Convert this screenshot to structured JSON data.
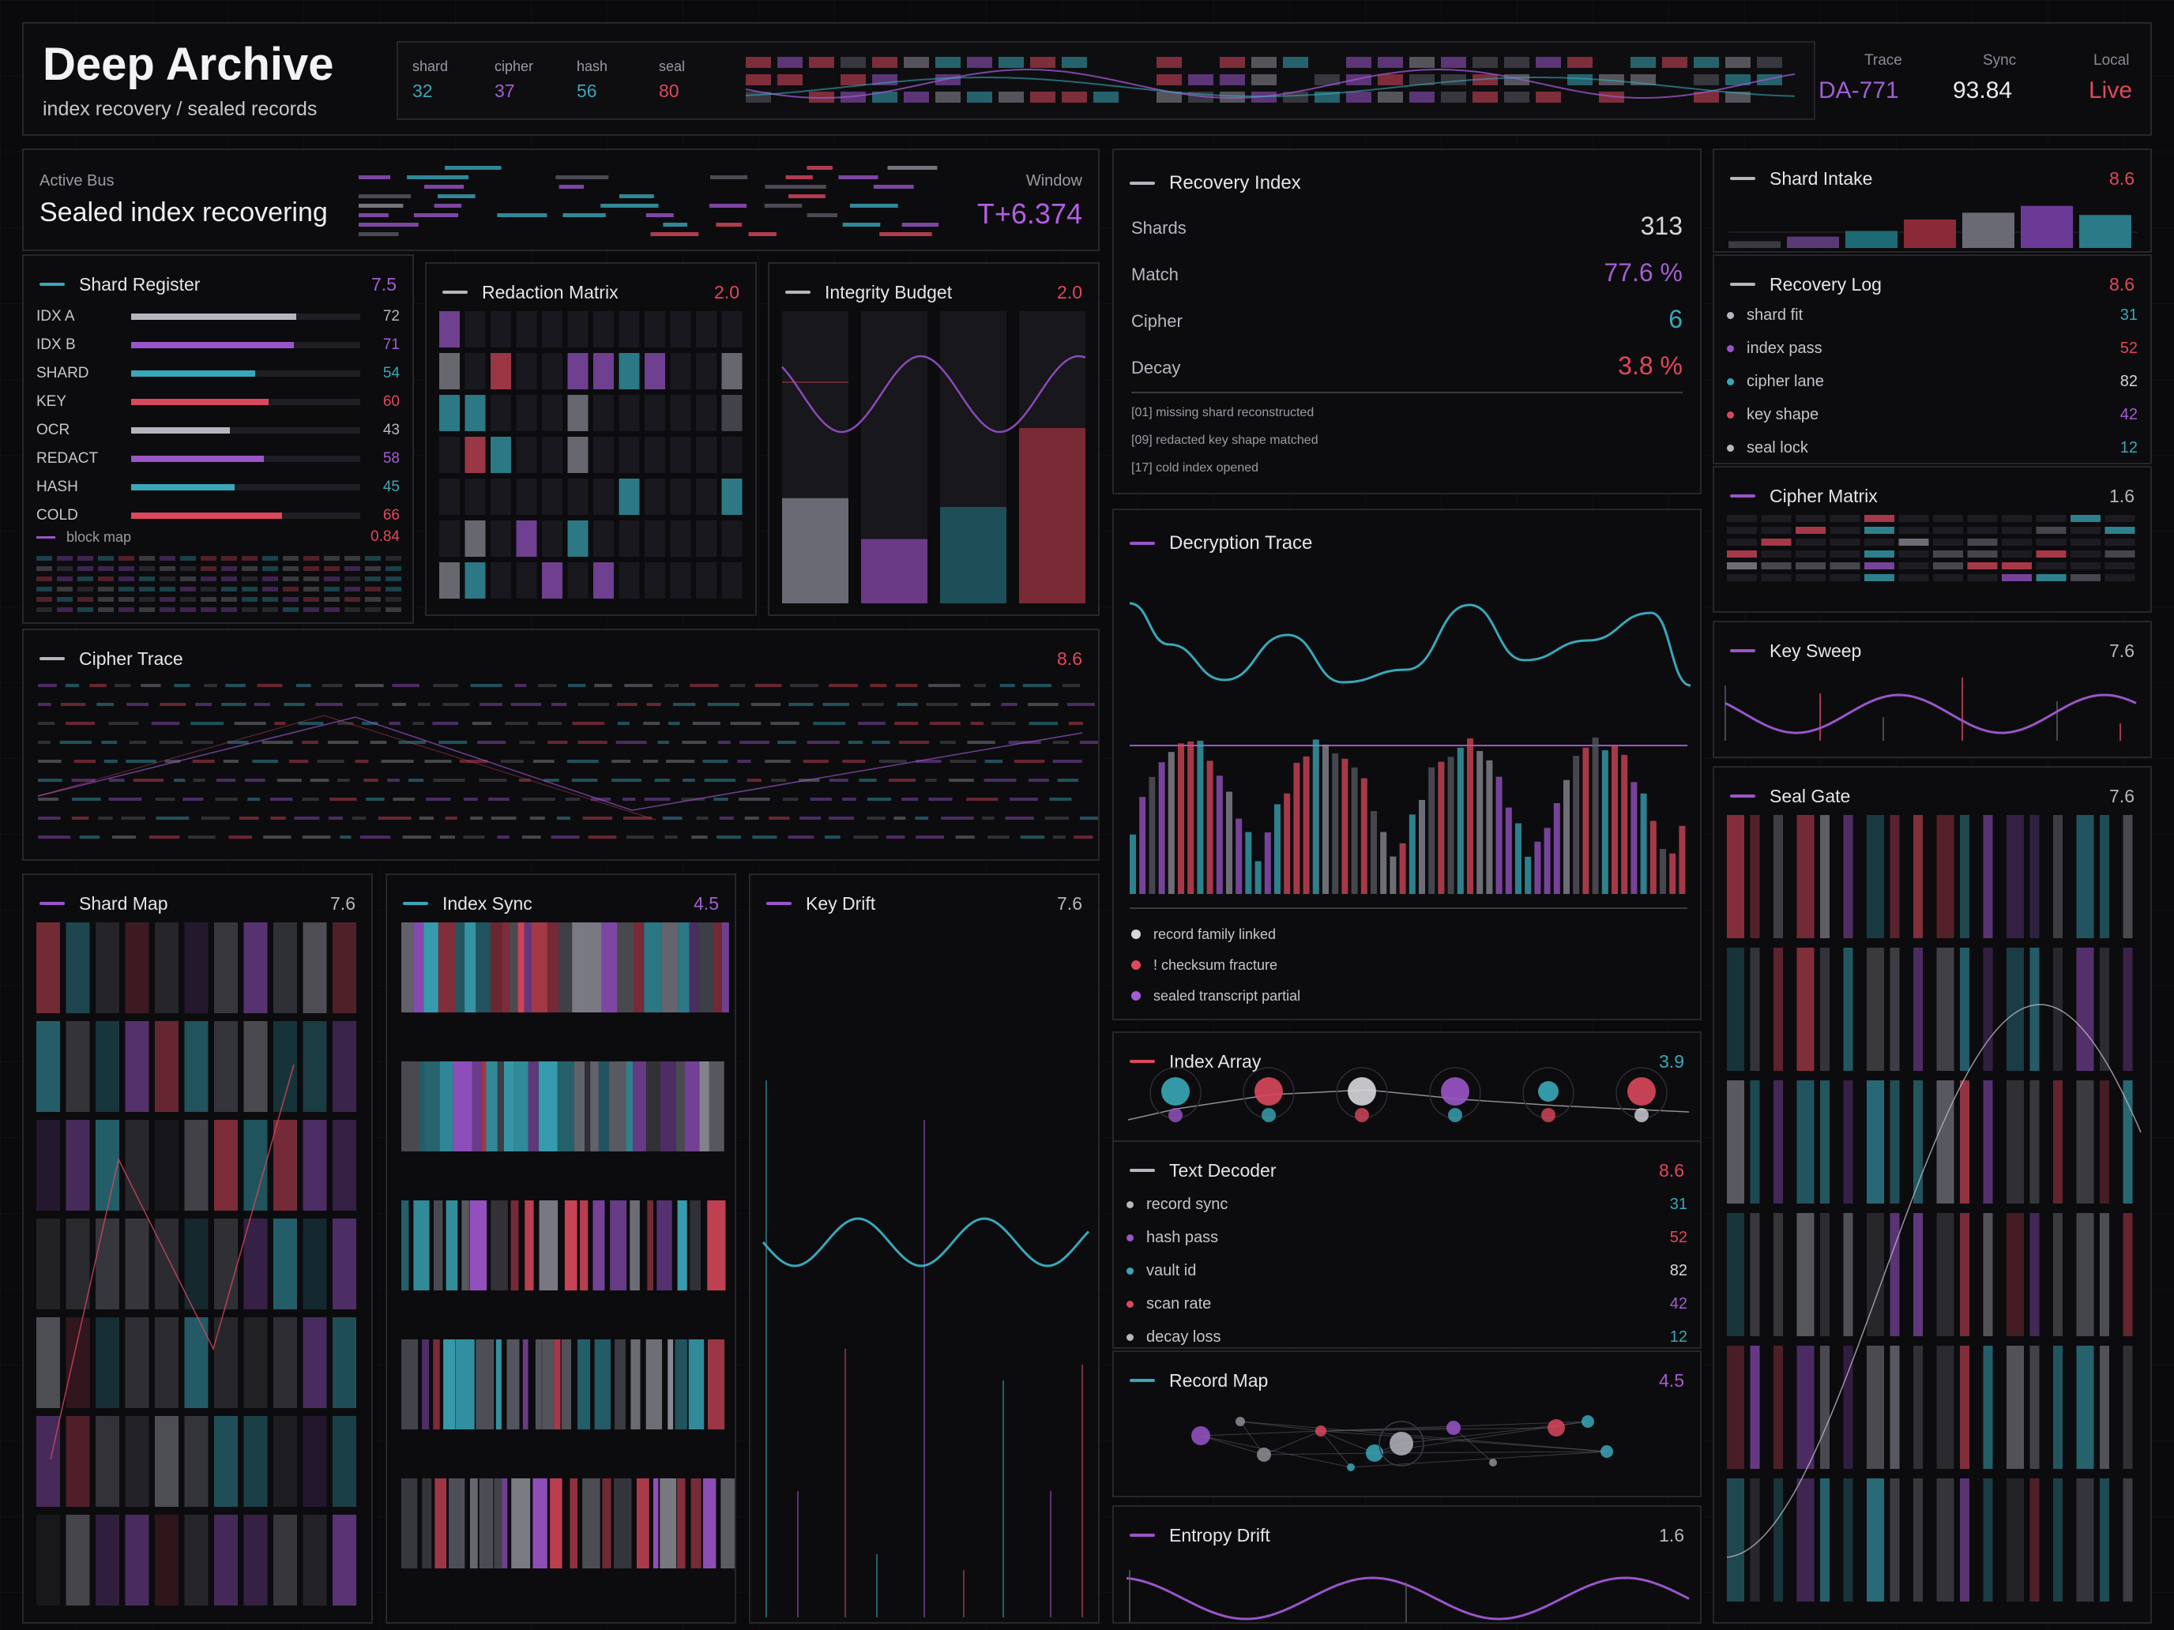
{
  "header": {
    "title": "Deep Archive",
    "subtitle": "index recovery / sealed records",
    "stats": [
      {
        "label": "shard",
        "value": "32",
        "color": "#3aa7b8"
      },
      {
        "label": "cipher",
        "value": "37",
        "color": "#a35ed0"
      },
      {
        "label": "hash",
        "value": "56",
        "color": "#3aa7b8"
      },
      {
        "label": "seal",
        "value": "80",
        "color": "#e0485a"
      }
    ],
    "trace_label": "Trace",
    "trace_value": "DA-771",
    "sync_label": "Sync",
    "sync_value": "93.84",
    "local_label": "Local",
    "local_value": "Live"
  },
  "bus": {
    "label": "Active Bus",
    "title": "Sealed index recovering",
    "window_label": "Window",
    "window_value": "T+6.374"
  },
  "shard_register": {
    "title": "Shard Register",
    "value": "7.5",
    "rows": [
      {
        "name": "IDX A",
        "value": 72,
        "color": "gray"
      },
      {
        "name": "IDX B",
        "value": 71,
        "color": "purp"
      },
      {
        "name": "SHARD",
        "value": 54,
        "color": "teal"
      },
      {
        "name": "KEY",
        "value": 60,
        "color": "red"
      },
      {
        "name": "OCR",
        "value": 43,
        "color": "gray"
      },
      {
        "name": "REDACT",
        "value": 58,
        "color": "purp"
      },
      {
        "name": "HASH",
        "value": 45,
        "color": "teal"
      },
      {
        "name": "COLD",
        "value": 66,
        "color": "red"
      }
    ],
    "legend_label": "block map",
    "legend_value": "0.84"
  },
  "redaction_matrix": {
    "title": "Redaction Matrix",
    "value": "2.0"
  },
  "integrity_budget": {
    "title": "Integrity Budget",
    "value": "2.0"
  },
  "recovery_index": {
    "title": "Recovery Index",
    "metrics": [
      {
        "label": "Shards",
        "value": "313",
        "color": "gray"
      },
      {
        "label": "Match",
        "value": "77.6 %",
        "color": "purp"
      },
      {
        "label": "Cipher",
        "value": "6",
        "color": "teal"
      },
      {
        "label": "Decay",
        "value": "3.8 %",
        "color": "red"
      }
    ],
    "log": [
      "[01] missing shard reconstructed",
      "[09] redacted key shape matched",
      "[17] cold index opened"
    ]
  },
  "shard_intake": {
    "title": "Shard Intake",
    "value": "8.6"
  },
  "recovery_log": {
    "title": "Recovery Log",
    "value": "8.6",
    "rows": [
      {
        "name": "shard fit",
        "value": "31",
        "color": "gray",
        "vcolor": "teal"
      },
      {
        "name": "index pass",
        "value": "52",
        "color": "purp",
        "vcolor": "red"
      },
      {
        "name": "cipher lane",
        "value": "82",
        "color": "teal",
        "vcolor": "white"
      },
      {
        "name": "key shape",
        "value": "42",
        "color": "red",
        "vcolor": "purp"
      },
      {
        "name": "seal lock",
        "value": "12",
        "color": "gray",
        "vcolor": "teal"
      }
    ]
  },
  "cipher_matrix": {
    "title": "Cipher Matrix",
    "value": "1.6"
  },
  "key_sweep": {
    "title": "Key Sweep",
    "value": "7.6"
  },
  "seal_gate": {
    "title": "Seal Gate",
    "value": "7.6"
  },
  "cipher_trace": {
    "title": "Cipher Trace",
    "value": "8.6"
  },
  "decryption_trace": {
    "title": "Decryption Trace",
    "legend": [
      {
        "label": "record family linked",
        "color": "#d6d6dc"
      },
      {
        "label": "! checksum fracture",
        "color": "#e0485a"
      },
      {
        "label": "sealed transcript partial",
        "color": "#a35ed0"
      }
    ]
  },
  "index_array": {
    "title": "Index Array",
    "value": "3.9"
  },
  "text_decoder": {
    "title": "Text Decoder",
    "value": "8.6",
    "rows": [
      {
        "name": "record sync",
        "value": "31",
        "color": "gray",
        "vcolor": "teal"
      },
      {
        "name": "hash pass",
        "value": "52",
        "color": "purp",
        "vcolor": "red"
      },
      {
        "name": "vault id",
        "value": "82",
        "color": "teal",
        "vcolor": "white"
      },
      {
        "name": "scan rate",
        "value": "42",
        "color": "red",
        "vcolor": "purp"
      },
      {
        "name": "decay loss",
        "value": "12",
        "color": "gray",
        "vcolor": "teal"
      }
    ]
  },
  "record_map": {
    "title": "Record Map",
    "value": "4.5"
  },
  "entropy_drift": {
    "title": "Entropy Drift",
    "value": "1.6"
  },
  "shard_map": {
    "title": "Shard Map",
    "value": "7.6"
  },
  "index_sync": {
    "title": "Index Sync",
    "value": "4.5"
  },
  "key_drift": {
    "title": "Key Drift",
    "value": "7.6"
  }
}
